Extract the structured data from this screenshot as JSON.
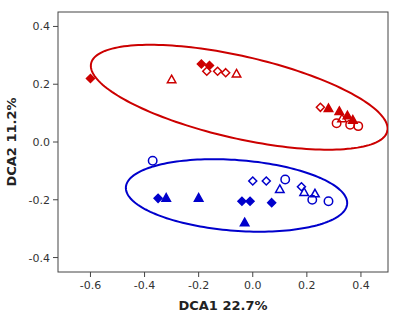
{
  "chart_data": {
    "type": "scatter",
    "xlabel": "DCA1 22.7%",
    "ylabel": "DCA2 11.2%",
    "xlim": [
      -0.72,
      0.5
    ],
    "ylim": [
      -0.45,
      0.45
    ],
    "xticks": [
      -0.6,
      -0.4,
      -0.2,
      {
        "value": 0.0,
        "label": "0.0"
      },
      0.2,
      0.4
    ],
    "yticks": [
      -0.4,
      -0.2,
      {
        "value": 0.0,
        "label": "0.0"
      },
      0.2,
      0.4
    ],
    "grid": false,
    "series": [
      {
        "color": "#cc0000",
        "marker": "diamond",
        "x": [
          -0.6,
          -0.19,
          -0.16
        ],
        "values": [
          0.22,
          0.27,
          0.265
        ]
      },
      {
        "color": "#cc0000",
        "marker": "diamond-open",
        "x": [
          -0.17,
          -0.13,
          -0.1,
          0.25
        ],
        "values": [
          0.245,
          0.245,
          0.24,
          0.12
        ]
      },
      {
        "color": "#cc0000",
        "marker": "triangle",
        "x": [
          0.28,
          0.32,
          0.35,
          0.37
        ],
        "values": [
          0.115,
          0.105,
          0.09,
          0.075
        ]
      },
      {
        "color": "#cc0000",
        "marker": "triangle-open",
        "x": [
          -0.3,
          -0.06,
          0.33
        ],
        "values": [
          0.215,
          0.235,
          0.08
        ]
      },
      {
        "color": "#cc0000",
        "marker": "circle-open",
        "x": [
          0.31,
          0.36,
          0.39
        ],
        "values": [
          0.065,
          0.06,
          0.055
        ]
      },
      {
        "color": "#0000cc",
        "marker": "diamond",
        "x": [
          -0.35,
          -0.04,
          -0.01,
          0.07
        ],
        "values": [
          -0.195,
          -0.205,
          -0.205,
          -0.21
        ]
      },
      {
        "color": "#0000cc",
        "marker": "diamond-open",
        "x": [
          0.0,
          0.05,
          0.18
        ],
        "values": [
          -0.135,
          -0.135,
          -0.155
        ]
      },
      {
        "color": "#0000cc",
        "marker": "triangle",
        "x": [
          -0.32,
          -0.2,
          -0.03
        ],
        "values": [
          -0.195,
          -0.195,
          -0.28
        ]
      },
      {
        "color": "#0000cc",
        "marker": "triangle-open",
        "x": [
          0.1,
          0.19,
          0.23
        ],
        "values": [
          -0.165,
          -0.175,
          -0.18
        ]
      },
      {
        "color": "#0000cc",
        "marker": "circle-open",
        "x": [
          -0.37,
          0.12,
          0.22,
          0.28
        ],
        "values": [
          -0.065,
          -0.13,
          -0.2,
          -0.205
        ]
      }
    ],
    "ellipses": [
      {
        "color": "#cc0000",
        "center": [
          -0.05,
          0.155
        ],
        "width": 1.12,
        "height": 0.285,
        "angle": -12
      },
      {
        "color": "#0000cc",
        "center": [
          -0.06,
          -0.185
        ],
        "width": 0.82,
        "height": 0.245,
        "angle": -4
      }
    ]
  }
}
